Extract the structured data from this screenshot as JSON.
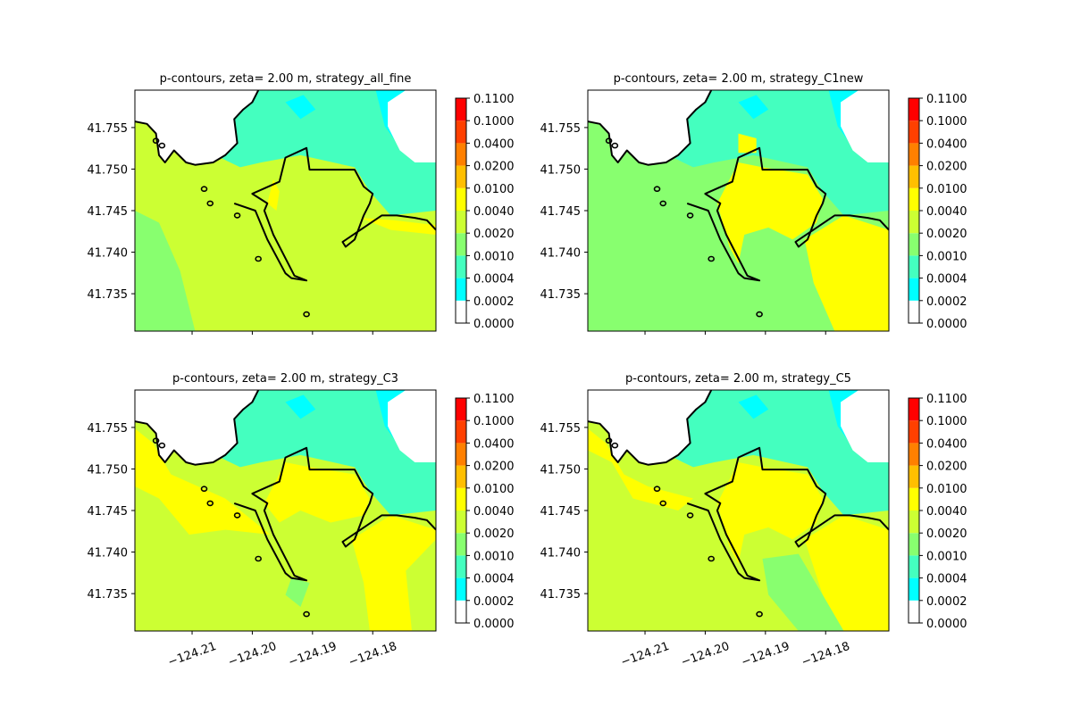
{
  "figure": {
    "colorbar_levels": [
      "0.0000",
      "0.0002",
      "0.0004",
      "0.0010",
      "0.0020",
      "0.0040",
      "0.0100",
      "0.0200",
      "0.0400",
      "0.1000",
      "0.1100"
    ],
    "colorbar_colors": [
      "#ffffff",
      "#00ffff",
      "#44ffbf",
      "#88ff6f",
      "#ccff33",
      "#ffff00",
      "#ffbf00",
      "#ff8000",
      "#ff4000",
      "#ff0000"
    ],
    "y_ticks": [
      "41.755",
      "41.750",
      "41.745",
      "41.740",
      "41.735"
    ],
    "x_ticks": [
      "−124.21",
      "−124.20",
      "−124.19",
      "−124.18"
    ]
  },
  "chart_data": [
    {
      "type": "contour",
      "title": "p-contours, zeta= 2.00 m, strategy_all_fine",
      "dominant_level_color": "#ccff33",
      "x_tick_labels_shown": false,
      "y_ticks": [
        41.755,
        41.75,
        41.745,
        41.74,
        41.735
      ]
    },
    {
      "type": "contour",
      "title": "p-contours, zeta= 2.00 m, strategy_C1new",
      "dominant_level_color": "#88ff6f",
      "x_tick_labels_shown": false,
      "y_ticks": [
        41.755,
        41.75,
        41.745,
        41.74,
        41.735
      ]
    },
    {
      "type": "contour",
      "title": "p-contours, zeta= 2.00 m, strategy_C3",
      "dominant_level_color": "#ccff33",
      "x_tick_labels_shown": true,
      "x_ticks": [
        -124.21,
        -124.2,
        -124.19,
        -124.18
      ],
      "y_ticks": [
        41.755,
        41.75,
        41.745,
        41.74,
        41.735
      ]
    },
    {
      "type": "contour",
      "title": "p-contours, zeta= 2.00 m, strategy_C5",
      "dominant_level_color": "#ccff33",
      "x_tick_labels_shown": true,
      "x_ticks": [
        -124.21,
        -124.2,
        -124.19,
        -124.18
      ],
      "y_ticks": [
        41.755,
        41.75,
        41.745,
        41.74,
        41.735
      ]
    }
  ]
}
